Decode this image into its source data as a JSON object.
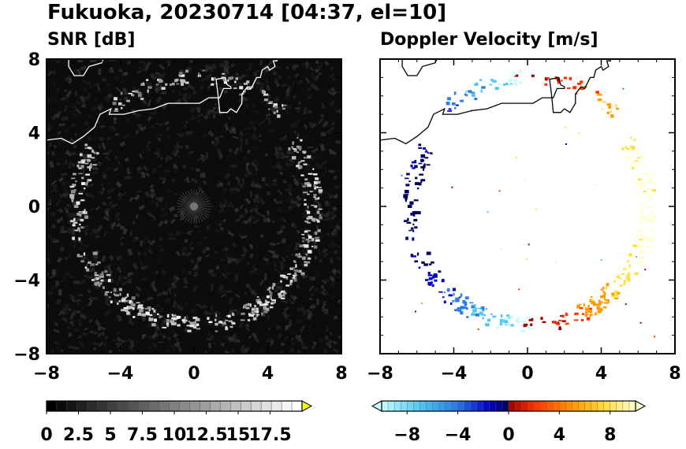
{
  "figure": {
    "title": "Fukuoka, 20230714 [04:37, el=10]"
  },
  "chart_data": [
    {
      "type": "heatmap",
      "title": "SNR [dB]",
      "xlim": [
        -8,
        8
      ],
      "ylim": [
        -8,
        8
      ],
      "x_ticks": [
        "−8",
        "−4",
        "0",
        "4",
        "8"
      ],
      "y_ticks": [
        "8",
        "4",
        "0",
        "−4",
        "−8"
      ],
      "colorbar": {
        "range": [
          0,
          20
        ],
        "extend": "max",
        "tick_labels": [
          "0",
          "2.5",
          "5",
          "7.5",
          "10",
          "12.5",
          "15",
          "17.5"
        ],
        "colors": [
          "#000000",
          "#ffffff",
          "#ffff00"
        ]
      },
      "echo_ring_radius_km": 6.4
    },
    {
      "type": "heatmap",
      "title": "Doppler Velocity [m/s]",
      "xlim": [
        -8,
        8
      ],
      "ylim": [
        -8,
        8
      ],
      "x_ticks": [
        "−8",
        "−4",
        "0",
        "4",
        "8"
      ],
      "y_ticks": [
        "8",
        "4",
        "0",
        "−4",
        "−8"
      ],
      "colorbar": {
        "range": [
          -10,
          10
        ],
        "extend": "both",
        "tick_labels": [
          "−8",
          "−4",
          "0",
          "4",
          "8"
        ],
        "colors_negative": [
          "#c8fbff",
          "#4fc9f0",
          "#2a7fe0",
          "#0000c8",
          "#000060"
        ],
        "colors_positive": [
          "#a00000",
          "#ff3000",
          "#ff9a00",
          "#ffe040",
          "#ffffd0"
        ]
      }
    }
  ]
}
